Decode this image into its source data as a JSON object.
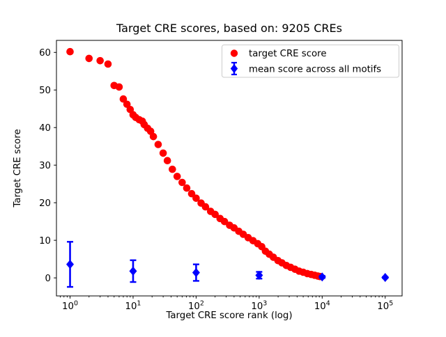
{
  "chart_data": {
    "type": "scatter",
    "title": "Target CRE scores, based on: 9205 CREs",
    "xlabel": "Target CRE score rank (log)",
    "ylabel": "Target CRE score",
    "xscale": "log",
    "grid": false,
    "legend_position": "upper right",
    "xlim_log10": [
      -0.216,
      5.268
    ],
    "ylim": [
      -4.8,
      63.2
    ],
    "x_tick_exponents": [
      0,
      1,
      2,
      3,
      4,
      5
    ],
    "y_ticks": [
      0,
      10,
      20,
      30,
      40,
      50,
      60
    ],
    "series": [
      {
        "name": "target CRE score",
        "marker": "circle",
        "color": "#ff0000",
        "points": [
          [
            1,
            60.2
          ],
          [
            2,
            58.4
          ],
          [
            3,
            57.8
          ],
          [
            4,
            56.9
          ],
          [
            5,
            51.2
          ],
          [
            6,
            50.8
          ],
          [
            7,
            47.6
          ],
          [
            8,
            46.2
          ],
          [
            9,
            44.8
          ],
          [
            10,
            43.4
          ],
          [
            11,
            42.7
          ],
          [
            12.5,
            42.1
          ],
          [
            14,
            41.7
          ],
          [
            15,
            40.8
          ],
          [
            17,
            39.8
          ],
          [
            19,
            39.0
          ],
          [
            21,
            37.6
          ],
          [
            25,
            35.5
          ],
          [
            30,
            33.2
          ],
          [
            35,
            31.2
          ],
          [
            42,
            28.9
          ],
          [
            50,
            27.0
          ],
          [
            60,
            25.4
          ],
          [
            71,
            23.9
          ],
          [
            85,
            22.4
          ],
          [
            100,
            21.2
          ],
          [
            120,
            19.9
          ],
          [
            141,
            18.9
          ],
          [
            170,
            17.7
          ],
          [
            200,
            16.9
          ],
          [
            240,
            15.8
          ],
          [
            282,
            15.0
          ],
          [
            340,
            14.0
          ],
          [
            400,
            13.3
          ],
          [
            475,
            12.4
          ],
          [
            560,
            11.6
          ],
          [
            670,
            10.7
          ],
          [
            800,
            9.9
          ],
          [
            950,
            9.1
          ],
          [
            1100,
            8.3
          ],
          [
            1260,
            7.1
          ],
          [
            1450,
            6.3
          ],
          [
            1680,
            5.5
          ],
          [
            1990,
            4.6
          ],
          [
            2300,
            4.0
          ],
          [
            2700,
            3.3
          ],
          [
            3160,
            2.8
          ],
          [
            3700,
            2.3
          ],
          [
            4300,
            1.8
          ],
          [
            5000,
            1.5
          ],
          [
            5800,
            1.15
          ],
          [
            6700,
            0.9
          ],
          [
            7600,
            0.7
          ],
          [
            8500,
            0.5
          ],
          [
            9205,
            0.35
          ]
        ]
      },
      {
        "name": "mean score across all motifs",
        "marker": "diamond",
        "color": "#0000ff",
        "points": [
          [
            1,
            3.6
          ],
          [
            10,
            1.8
          ],
          [
            100,
            1.4
          ],
          [
            1000,
            0.7
          ],
          [
            10000,
            0.25
          ],
          [
            100000,
            0.1
          ]
        ],
        "yerr": [
          6.0,
          2.9,
          2.2,
          0.9,
          0.3,
          0.15
        ]
      }
    ]
  }
}
